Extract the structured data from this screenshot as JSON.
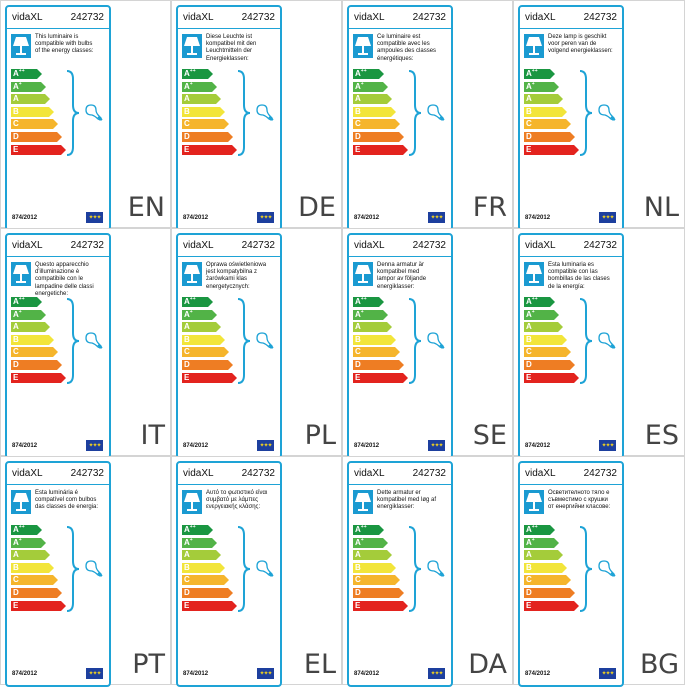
{
  "brand": "vidaXL",
  "product_code": "242732",
  "regulation": "874/2012",
  "energy_classes": [
    {
      "main": "A",
      "sup": "++",
      "color": "#1a9641"
    },
    {
      "main": "A",
      "sup": "+",
      "color": "#52b347"
    },
    {
      "main": "A",
      "sup": "",
      "color": "#a4cc3a"
    },
    {
      "main": "B",
      "sup": "",
      "color": "#f2e53a"
    },
    {
      "main": "C",
      "sup": "",
      "color": "#f5b52c"
    },
    {
      "main": "D",
      "sup": "",
      "color": "#ee7d23"
    },
    {
      "main": "E",
      "sup": "",
      "color": "#e3231e"
    }
  ],
  "colors": {
    "accent": "#1ea3d6",
    "eu_flag": "#1d3f9e",
    "eu_stars": "#f3d31d"
  },
  "icons": {
    "lamp": "table-lamp-icon",
    "bulb": "light-bulb-icon",
    "flag": "eu-flag-icon",
    "brace": "curly-brace-icon"
  },
  "labels": [
    {
      "lang": "EN",
      "text": "This luminaire is\ncompatible with bulbs\nof the energy classes:"
    },
    {
      "lang": "DE",
      "text": "Diese Leuchte ist\nkompatibel mit den\nLeuchtmitteln der\nEnergieklassen:"
    },
    {
      "lang": "FR",
      "text": "Ce luminaire est\ncompatible avec les\nampoules des classes\nénergétiques:"
    },
    {
      "lang": "NL",
      "text": "Deze lamp is geschikt\nvoor peren van de\nvolgend energieklassen:"
    },
    {
      "lang": "IT",
      "text": "Questo apparecchio\nd'illuminazione è\ncompatibile con le\nlampadine delle classi\nenergetiche:"
    },
    {
      "lang": "PL",
      "text": "Oprawa oświetleniowa\njest kompatybilna z\nżarówkami klas\nenergetycznych:"
    },
    {
      "lang": "SE",
      "text": "Denna armatur är\nkompatibel med\nlampor av följande\nenergiklasser:"
    },
    {
      "lang": "ES",
      "text": "Esta luminaria es\ncompatible con las\nbombillas de las clases\nde la energía:"
    },
    {
      "lang": "PT",
      "text": "Esta luminária é\ncompatível com bulbos\ndas classes de energia:"
    },
    {
      "lang": "EL",
      "text": "Αυτό το φωτιστικό είναι\nσυμβατό με λάμπες\nενεργειακής κλάσης:"
    },
    {
      "lang": "DA",
      "text": "Dette armatur er\nkompatibel med løg af\nenergiklasser:"
    },
    {
      "lang": "BG",
      "text": "Осветителното тяло е\nсъвместимо с крушки\nот енергийни класове:"
    }
  ]
}
